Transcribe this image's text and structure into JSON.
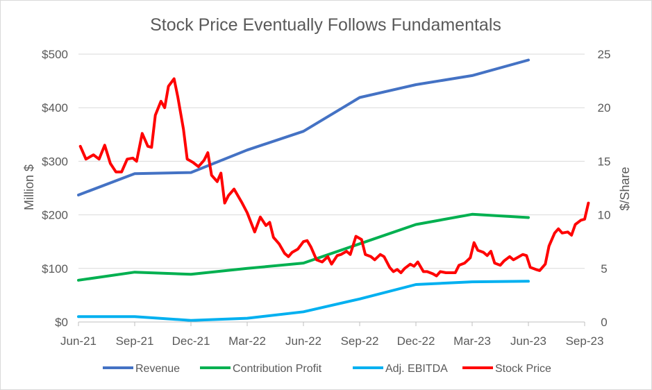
{
  "chart_data": {
    "type": "line",
    "title": "Stock Price Eventually Follows Fundamentals",
    "ylabel": "Million $",
    "y2label": "$/Share",
    "xlabel": "",
    "x_ticks": [
      "Jun-21",
      "Sep-21",
      "Dec-21",
      "Mar-22",
      "Jun-22",
      "Sep-22",
      "Dec-22",
      "Mar-23",
      "Jun-23",
      "Sep-23"
    ],
    "y_ticks": [
      "$0",
      "$100",
      "$200",
      "$300",
      "$400",
      "$500"
    ],
    "y2_ticks": [
      "0",
      "5",
      "10",
      "15",
      "20",
      "25"
    ],
    "ylim": [
      0,
      500
    ],
    "y2lim": [
      0,
      25
    ],
    "xlim_months": [
      0,
      27
    ],
    "grid": "horizontal",
    "legend_position": "bottom",
    "colors": {
      "revenue": "#4472c4",
      "contribution": "#00b050",
      "ebitda": "#00b0f0",
      "stock": "#ff0000",
      "grid": "#d9d9d9"
    },
    "series": [
      {
        "name": "Revenue",
        "axis": "left",
        "points": [
          [
            0,
            237
          ],
          [
            3,
            277
          ],
          [
            6,
            279
          ],
          [
            9,
            321
          ],
          [
            12,
            356
          ],
          [
            15,
            419
          ],
          [
            18,
            443
          ],
          [
            21,
            460
          ],
          [
            24,
            489
          ]
        ]
      },
      {
        "name": "Contribution Profit",
        "axis": "left",
        "points": [
          [
            0,
            78
          ],
          [
            3,
            93
          ],
          [
            6,
            89
          ],
          [
            9,
            100
          ],
          [
            12,
            110
          ],
          [
            15,
            146
          ],
          [
            18,
            182
          ],
          [
            21,
            201
          ],
          [
            24,
            195
          ]
        ]
      },
      {
        "name": "Adj. EBITDA",
        "axis": "left",
        "points": [
          [
            0,
            10
          ],
          [
            3,
            10
          ],
          [
            6,
            3
          ],
          [
            9,
            7
          ],
          [
            12,
            19
          ],
          [
            15,
            43
          ],
          [
            18,
            70
          ],
          [
            21,
            75
          ],
          [
            24,
            76
          ]
        ]
      },
      {
        "name": "Stock Price",
        "axis": "right",
        "points": [
          [
            0.1,
            16.4
          ],
          [
            0.4,
            15.2
          ],
          [
            0.8,
            15.6
          ],
          [
            1.1,
            15.2
          ],
          [
            1.4,
            16.5
          ],
          [
            1.7,
            14.8
          ],
          [
            2.0,
            14.0
          ],
          [
            2.3,
            14.0
          ],
          [
            2.6,
            15.2
          ],
          [
            2.9,
            15.3
          ],
          [
            3.1,
            15.0
          ],
          [
            3.4,
            17.6
          ],
          [
            3.7,
            16.4
          ],
          [
            3.9,
            16.3
          ],
          [
            4.1,
            19.3
          ],
          [
            4.4,
            20.6
          ],
          [
            4.6,
            20.0
          ],
          [
            4.8,
            22.0
          ],
          [
            5.1,
            22.7
          ],
          [
            5.3,
            21.0
          ],
          [
            5.6,
            18.0
          ],
          [
            5.8,
            15.2
          ],
          [
            6.1,
            14.9
          ],
          [
            6.4,
            14.5
          ],
          [
            6.7,
            15.1
          ],
          [
            6.9,
            15.8
          ],
          [
            7.1,
            13.7
          ],
          [
            7.4,
            13.1
          ],
          [
            7.6,
            13.9
          ],
          [
            7.8,
            11.1
          ],
          [
            8.0,
            11.8
          ],
          [
            8.3,
            12.4
          ],
          [
            8.7,
            11.2
          ],
          [
            9.0,
            10.2
          ],
          [
            9.2,
            9.3
          ],
          [
            9.4,
            8.4
          ],
          [
            9.7,
            9.8
          ],
          [
            10.0,
            9.0
          ],
          [
            10.2,
            9.3
          ],
          [
            10.4,
            7.9
          ],
          [
            10.7,
            7.3
          ],
          [
            11.0,
            6.4
          ],
          [
            11.2,
            6.1
          ],
          [
            11.4,
            6.5
          ],
          [
            11.7,
            6.8
          ],
          [
            12.0,
            7.5
          ],
          [
            12.2,
            7.6
          ],
          [
            12.4,
            7.0
          ],
          [
            12.7,
            5.8
          ],
          [
            13.0,
            5.6
          ],
          [
            13.3,
            6.1
          ],
          [
            13.5,
            5.4
          ],
          [
            13.8,
            6.2
          ],
          [
            14.0,
            6.3
          ],
          [
            14.3,
            6.6
          ],
          [
            14.5,
            6.3
          ],
          [
            14.8,
            8.0
          ],
          [
            15.1,
            7.7
          ],
          [
            15.3,
            6.3
          ],
          [
            15.6,
            6.1
          ],
          [
            15.8,
            5.8
          ],
          [
            16.1,
            6.3
          ],
          [
            16.3,
            6.1
          ],
          [
            16.6,
            5.1
          ],
          [
            16.8,
            4.7
          ],
          [
            17.0,
            4.9
          ],
          [
            17.2,
            4.6
          ],
          [
            17.4,
            5.0
          ],
          [
            17.7,
            5.4
          ],
          [
            17.9,
            5.2
          ],
          [
            18.1,
            5.6
          ],
          [
            18.4,
            4.7
          ],
          [
            18.6,
            4.7
          ],
          [
            18.9,
            4.5
          ],
          [
            19.1,
            4.3
          ],
          [
            19.3,
            4.7
          ],
          [
            19.6,
            4.6
          ],
          [
            19.9,
            4.6
          ],
          [
            20.1,
            4.6
          ],
          [
            20.3,
            5.3
          ],
          [
            20.6,
            5.5
          ],
          [
            20.9,
            6.0
          ],
          [
            21.1,
            7.4
          ],
          [
            21.3,
            6.7
          ],
          [
            21.6,
            6.5
          ],
          [
            21.8,
            6.2
          ],
          [
            22.0,
            6.6
          ],
          [
            22.2,
            5.5
          ],
          [
            22.5,
            5.3
          ],
          [
            22.7,
            5.7
          ],
          [
            23.0,
            6.1
          ],
          [
            23.2,
            5.8
          ],
          [
            23.4,
            6.0
          ],
          [
            23.7,
            6.3
          ],
          [
            23.9,
            6.2
          ],
          [
            24.1,
            5.1
          ],
          [
            24.4,
            4.9
          ],
          [
            24.6,
            4.8
          ],
          [
            24.9,
            5.4
          ],
          [
            25.1,
            7.1
          ],
          [
            25.4,
            8.3
          ],
          [
            25.6,
            8.7
          ],
          [
            25.8,
            8.3
          ],
          [
            26.1,
            8.4
          ],
          [
            26.3,
            8.1
          ],
          [
            26.5,
            9.1
          ],
          [
            26.8,
            9.5
          ],
          [
            27.0,
            9.6
          ],
          [
            27.2,
            11.1
          ]
        ]
      }
    ]
  }
}
